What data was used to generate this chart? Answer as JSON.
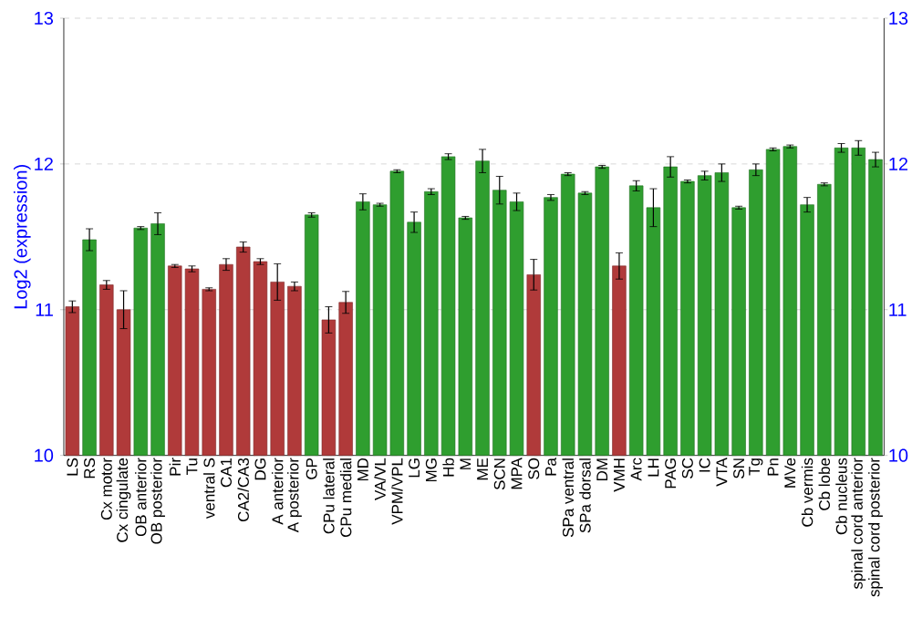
{
  "chart_data": {
    "type": "bar",
    "ylabel": "Log2 (expression)",
    "categories": [
      "LS",
      "RS",
      "Cx motor",
      "Cx cingulate",
      "OB anterior",
      "OB posterior",
      "Pir",
      "Tu",
      "ventral S",
      "CA1",
      "CA2/CA3",
      "DG",
      "A anterior",
      "A posterior",
      "GP",
      "CPu lateral",
      "CPu medial",
      "MD",
      "VA/VL",
      "VPM/VPL",
      "LG",
      "MG",
      "Hb",
      "M",
      "ME",
      "SCN",
      "MPA",
      "SO",
      "Pa",
      "SPa ventral",
      "SPa dorsal",
      "DM",
      "VMH",
      "Arc",
      "LH",
      "PAG",
      "SC",
      "IC",
      "VTA",
      "SN",
      "Tg",
      "Pn",
      "MVe",
      "Cb vermis",
      "Cb lobe",
      "Cb nucleus",
      "spinal cord anterior",
      "spinal cord posterior"
    ],
    "values": [
      11.02,
      11.48,
      11.17,
      11.0,
      11.56,
      11.59,
      11.3,
      11.28,
      11.14,
      11.31,
      11.43,
      11.33,
      11.19,
      11.16,
      11.65,
      10.93,
      11.05,
      11.74,
      11.72,
      11.95,
      11.6,
      11.81,
      12.05,
      11.63,
      12.02,
      11.82,
      11.74,
      11.24,
      11.77,
      11.93,
      11.8,
      11.98,
      11.3,
      11.85,
      11.7,
      11.98,
      11.88,
      11.92,
      11.94,
      11.7,
      11.96,
      12.1,
      12.12,
      11.72,
      11.86,
      12.11,
      12.11,
      12.03
    ],
    "errors": [
      0.04,
      0.075,
      0.03,
      0.13,
      0.01,
      0.075,
      0.01,
      0.02,
      0.01,
      0.04,
      0.035,
      0.02,
      0.125,
      0.03,
      0.015,
      0.09,
      0.075,
      0.055,
      0.01,
      0.01,
      0.07,
      0.02,
      0.02,
      0.01,
      0.08,
      0.095,
      0.06,
      0.105,
      0.02,
      0.01,
      0.01,
      0.01,
      0.09,
      0.035,
      0.13,
      0.07,
      0.01,
      0.03,
      0.06,
      0.01,
      0.04,
      0.01,
      0.01,
      0.05,
      0.01,
      0.03,
      0.05,
      0.05
    ],
    "colors": [
      "#b03a3a",
      "#2f9e2f",
      "#b03a3a",
      "#b03a3a",
      "#2f9e2f",
      "#2f9e2f",
      "#b03a3a",
      "#b03a3a",
      "#b03a3a",
      "#b03a3a",
      "#b03a3a",
      "#b03a3a",
      "#b03a3a",
      "#b03a3a",
      "#2f9e2f",
      "#b03a3a",
      "#b03a3a",
      "#2f9e2f",
      "#2f9e2f",
      "#2f9e2f",
      "#2f9e2f",
      "#2f9e2f",
      "#2f9e2f",
      "#2f9e2f",
      "#2f9e2f",
      "#2f9e2f",
      "#2f9e2f",
      "#b03a3a",
      "#2f9e2f",
      "#2f9e2f",
      "#2f9e2f",
      "#2f9e2f",
      "#b03a3a",
      "#2f9e2f",
      "#2f9e2f",
      "#2f9e2f",
      "#2f9e2f",
      "#2f9e2f",
      "#2f9e2f",
      "#2f9e2f",
      "#2f9e2f",
      "#2f9e2f",
      "#2f9e2f",
      "#2f9e2f",
      "#2f9e2f",
      "#2f9e2f",
      "#2f9e2f",
      "#2f9e2f"
    ],
    "ylim": [
      10,
      13
    ],
    "yticks": [
      10,
      11,
      12,
      13
    ],
    "y2lim": [
      10,
      13
    ],
    "y2ticks": [
      10,
      11,
      12,
      13
    ],
    "grid": "y"
  }
}
